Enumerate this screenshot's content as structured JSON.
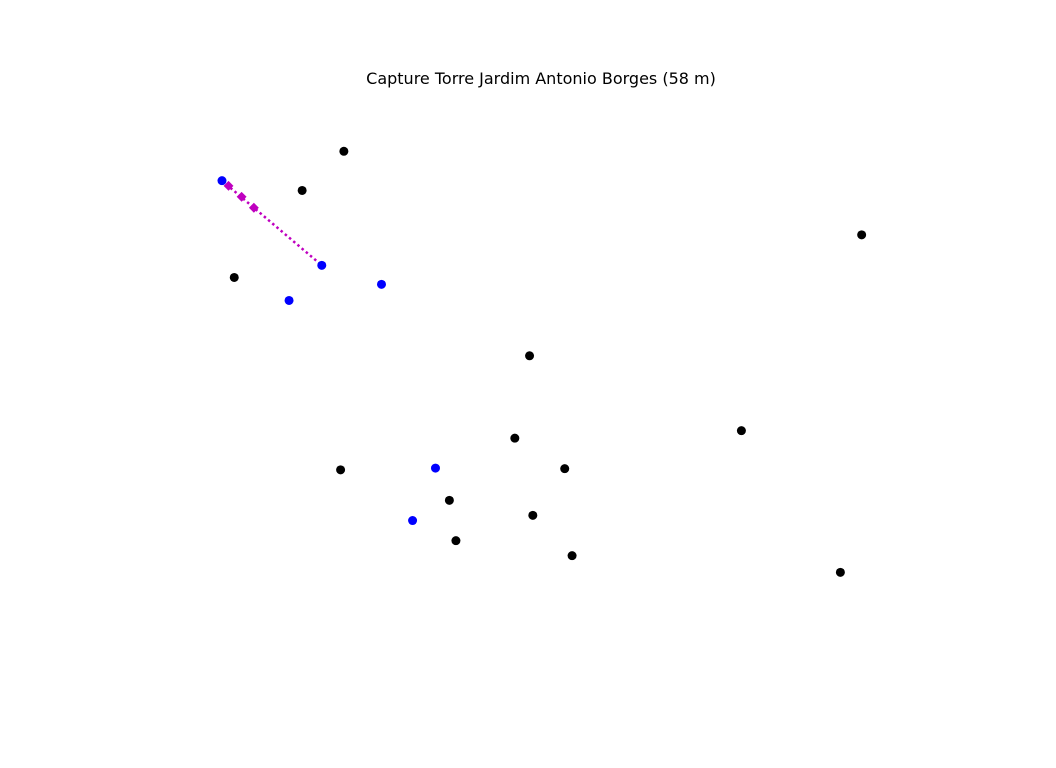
{
  "chart_data": {
    "type": "scatter",
    "title": "Capture Torre Jardim Antonio Borges (58 m)",
    "xlabel": "",
    "ylabel": "",
    "axes_visible": false,
    "grid": false,
    "legend": false,
    "xlim": [
      0,
      100
    ],
    "ylim": [
      0,
      100
    ],
    "series": [
      {
        "color": "#000000",
        "marker": "circle",
        "points": [
          {
            "x": 25.9,
            "y": 90.4
          },
          {
            "x": 20.8,
            "y": 83.6
          },
          {
            "x": 89.2,
            "y": 75.9
          },
          {
            "x": 12.5,
            "y": 68.5
          },
          {
            "x": 48.6,
            "y": 54.9
          },
          {
            "x": 25.5,
            "y": 35.1
          },
          {
            "x": 74.5,
            "y": 41.9
          },
          {
            "x": 46.8,
            "y": 40.6
          },
          {
            "x": 52.9,
            "y": 35.3
          },
          {
            "x": 38.8,
            "y": 29.8
          },
          {
            "x": 49.0,
            "y": 27.2
          },
          {
            "x": 39.6,
            "y": 22.8
          },
          {
            "x": 53.8,
            "y": 20.2
          },
          {
            "x": 86.6,
            "y": 17.3
          }
        ]
      },
      {
        "color": "#0000ff",
        "marker": "circle",
        "points": [
          {
            "x": 11.0,
            "y": 85.3
          },
          {
            "x": 23.2,
            "y": 70.6
          },
          {
            "x": 30.5,
            "y": 67.3
          },
          {
            "x": 19.2,
            "y": 64.5
          },
          {
            "x": 37.1,
            "y": 35.4
          },
          {
            "x": 34.3,
            "y": 26.3
          }
        ]
      },
      {
        "color": "#bf00bf",
        "marker": "diamond",
        "line_style": "dotted",
        "line_points": [
          {
            "x": 11.0,
            "y": 85.3
          },
          {
            "x": 23.2,
            "y": 70.6
          }
        ],
        "points": [
          {
            "x": 11.8,
            "y": 84.4
          },
          {
            "x": 13.4,
            "y": 82.5
          },
          {
            "x": 14.9,
            "y": 80.6
          }
        ]
      }
    ]
  }
}
